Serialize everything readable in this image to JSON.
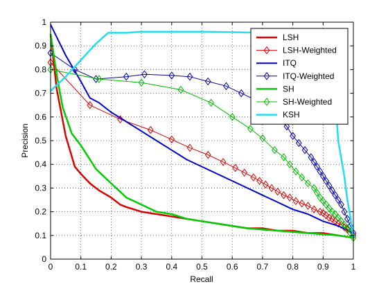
{
  "chart_data": {
    "type": "line",
    "xlabel": "Recall",
    "ylabel": "Precision",
    "xlim": [
      0,
      1
    ],
    "ylim": [
      0,
      1
    ],
    "xticks": [
      "0",
      "0.1",
      "0.2",
      "0.3",
      "0.4",
      "0.5",
      "0.6",
      "0.7",
      "0.8",
      "0.9",
      "1"
    ],
    "yticks": [
      "0",
      "0.1",
      "0.2",
      "0.3",
      "0.4",
      "0.5",
      "0.6",
      "0.7",
      "0.8",
      "0.9",
      "1"
    ],
    "grid": true,
    "legend_position": "top-right",
    "series": [
      {
        "name": "LSH",
        "color": "#dd0000",
        "marker": "none",
        "width": 2.5,
        "x": [
          0,
          0.02,
          0.05,
          0.08,
          0.1,
          0.13,
          0.16,
          0.2,
          0.23,
          0.25,
          0.3,
          0.35,
          0.4,
          0.45,
          0.5,
          0.55,
          0.6,
          0.65,
          0.7,
          0.75,
          0.8,
          0.85,
          0.9,
          0.95,
          1.0
        ],
        "y": [
          0.95,
          0.72,
          0.52,
          0.39,
          0.36,
          0.32,
          0.29,
          0.26,
          0.23,
          0.22,
          0.2,
          0.19,
          0.18,
          0.17,
          0.16,
          0.15,
          0.14,
          0.13,
          0.13,
          0.12,
          0.12,
          0.11,
          0.11,
          0.1,
          0.09
        ]
      },
      {
        "name": "LSH-Weighted",
        "color": "#dd0000",
        "marker": "diamond",
        "width": 1,
        "x": [
          0,
          0.13,
          0.23,
          0.33,
          0.4,
          0.46,
          0.52,
          0.57,
          0.61,
          0.64,
          0.67,
          0.69,
          0.71,
          0.73,
          0.75,
          0.77,
          0.79,
          0.81,
          0.83,
          0.85,
          0.87,
          0.89,
          0.9,
          0.91,
          0.92,
          0.93,
          0.94,
          0.95,
          0.96,
          0.97,
          0.98,
          0.99,
          1.0
        ],
        "y": [
          0.83,
          0.65,
          0.59,
          0.545,
          0.505,
          0.47,
          0.44,
          0.41,
          0.385,
          0.365,
          0.345,
          0.33,
          0.315,
          0.3,
          0.285,
          0.27,
          0.26,
          0.245,
          0.235,
          0.225,
          0.21,
          0.2,
          0.195,
          0.185,
          0.175,
          0.17,
          0.16,
          0.15,
          0.145,
          0.135,
          0.125,
          0.11,
          0.1
        ]
      },
      {
        "name": "ITQ",
        "color": "#0000cc",
        "marker": "none",
        "width": 2,
        "x": [
          0,
          0.05,
          0.1,
          0.13,
          0.16,
          0.2,
          0.25,
          0.3,
          0.35,
          0.4,
          0.45,
          0.5,
          0.55,
          0.6,
          0.65,
          0.7,
          0.75,
          0.8,
          0.85,
          0.9,
          0.95,
          1.0
        ],
        "y": [
          0.99,
          0.86,
          0.75,
          0.68,
          0.66,
          0.62,
          0.58,
          0.54,
          0.5,
          0.46,
          0.42,
          0.39,
          0.36,
          0.33,
          0.3,
          0.27,
          0.24,
          0.21,
          0.19,
          0.16,
          0.14,
          0.11
        ]
      },
      {
        "name": "ITQ-Weighted",
        "color": "#0000aa",
        "marker": "diamond",
        "width": 1,
        "x": [
          0,
          0.08,
          0.15,
          0.25,
          0.31,
          0.4,
          0.46,
          0.52,
          0.58,
          0.63,
          0.68,
          0.72,
          0.75,
          0.78,
          0.8,
          0.82,
          0.84,
          0.86,
          0.87,
          0.88,
          0.89,
          0.9,
          0.91,
          0.92,
          0.93,
          0.94,
          0.95,
          0.96,
          0.97,
          0.98,
          0.99,
          1.0
        ],
        "y": [
          0.87,
          0.8,
          0.76,
          0.77,
          0.78,
          0.775,
          0.77,
          0.75,
          0.73,
          0.7,
          0.67,
          0.63,
          0.6,
          0.56,
          0.52,
          0.49,
          0.46,
          0.43,
          0.41,
          0.39,
          0.37,
          0.35,
          0.33,
          0.31,
          0.29,
          0.27,
          0.25,
          0.23,
          0.2,
          0.17,
          0.14,
          0.11
        ]
      },
      {
        "name": "SH",
        "color": "#00cc00",
        "marker": "none",
        "width": 2.5,
        "x": [
          0,
          0.02,
          0.04,
          0.07,
          0.1,
          0.15,
          0.2,
          0.25,
          0.3,
          0.35,
          0.4,
          0.45,
          0.5,
          0.55,
          0.6,
          0.65,
          0.7,
          0.75,
          0.8,
          0.85,
          0.9,
          0.95,
          1.0
        ],
        "y": [
          0.95,
          0.78,
          0.64,
          0.53,
          0.48,
          0.38,
          0.32,
          0.26,
          0.23,
          0.2,
          0.19,
          0.17,
          0.16,
          0.15,
          0.14,
          0.13,
          0.125,
          0.12,
          0.115,
          0.11,
          0.105,
          0.1,
          0.09
        ]
      },
      {
        "name": "SH-Weighted",
        "color": "#00bb00",
        "marker": "diamond",
        "width": 1,
        "x": [
          0,
          0.16,
          0.3,
          0.43,
          0.53,
          0.6,
          0.66,
          0.7,
          0.74,
          0.77,
          0.79,
          0.81,
          0.83,
          0.85,
          0.87,
          0.88,
          0.89,
          0.9,
          0.91,
          0.92,
          0.93,
          0.94,
          0.95,
          0.96,
          0.97,
          0.98,
          0.99,
          1.0
        ],
        "y": [
          0.8,
          0.76,
          0.745,
          0.715,
          0.66,
          0.6,
          0.55,
          0.51,
          0.46,
          0.43,
          0.4,
          0.37,
          0.345,
          0.32,
          0.3,
          0.28,
          0.26,
          0.245,
          0.23,
          0.215,
          0.2,
          0.19,
          0.175,
          0.16,
          0.145,
          0.13,
          0.11,
          0.09
        ]
      },
      {
        "name": "KSH",
        "color": "#22ddee",
        "marker": "none",
        "width": 2.5,
        "x": [
          0,
          0.05,
          0.1,
          0.15,
          0.19,
          0.25,
          0.3,
          0.4,
          0.5,
          0.6,
          0.7,
          0.8,
          0.88,
          0.93,
          0.95,
          0.97,
          0.98,
          0.99,
          1.0
        ],
        "y": [
          0.71,
          0.77,
          0.84,
          0.91,
          0.955,
          0.955,
          0.96,
          0.96,
          0.96,
          0.958,
          0.955,
          0.95,
          0.93,
          0.88,
          0.5,
          0.35,
          0.25,
          0.18,
          0.09
        ]
      }
    ]
  }
}
